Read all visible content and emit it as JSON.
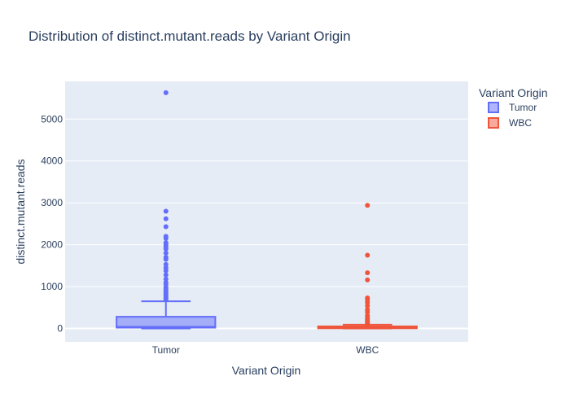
{
  "chart_data": {
    "type": "box",
    "title": "Distribution of distinct.mutant.reads by Variant Origin",
    "xlabel": "Variant Origin",
    "ylabel": "distinct.mutant.reads",
    "categories": [
      "Tumor",
      "WBC"
    ],
    "ylim": [
      -320,
      5900
    ],
    "yticks": [
      0,
      1000,
      2000,
      3000,
      4000,
      5000
    ],
    "grid": true,
    "legend": {
      "title": "Variant Origin",
      "placement": "top-right"
    },
    "series": [
      {
        "name": "Tumor",
        "color": "#636efa",
        "fill": "rgba(99,110,250,0.5)",
        "min": 0,
        "q1": 20,
        "median": 40,
        "q3": 280,
        "upper_fence": 650,
        "outliers": [
          690,
          720,
          750,
          780,
          810,
          840,
          870,
          900,
          940,
          980,
          1050,
          1100,
          1180,
          1280,
          1380,
          1450,
          1530,
          1650,
          1700,
          1800,
          1900,
          1950,
          2000,
          2050,
          2150,
          2200,
          2430,
          2620,
          2800,
          5630
        ]
      },
      {
        "name": "WBC",
        "color": "#ef553b",
        "fill": "rgba(239,85,59,0.5)",
        "min": 0,
        "q1": 5,
        "median": 20,
        "q3": 50,
        "upper_fence": 90,
        "outliers": [
          100,
          120,
          140,
          160,
          190,
          220,
          260,
          310,
          390,
          450,
          540,
          620,
          680,
          730,
          1160,
          1330,
          1750,
          2940
        ]
      }
    ]
  }
}
